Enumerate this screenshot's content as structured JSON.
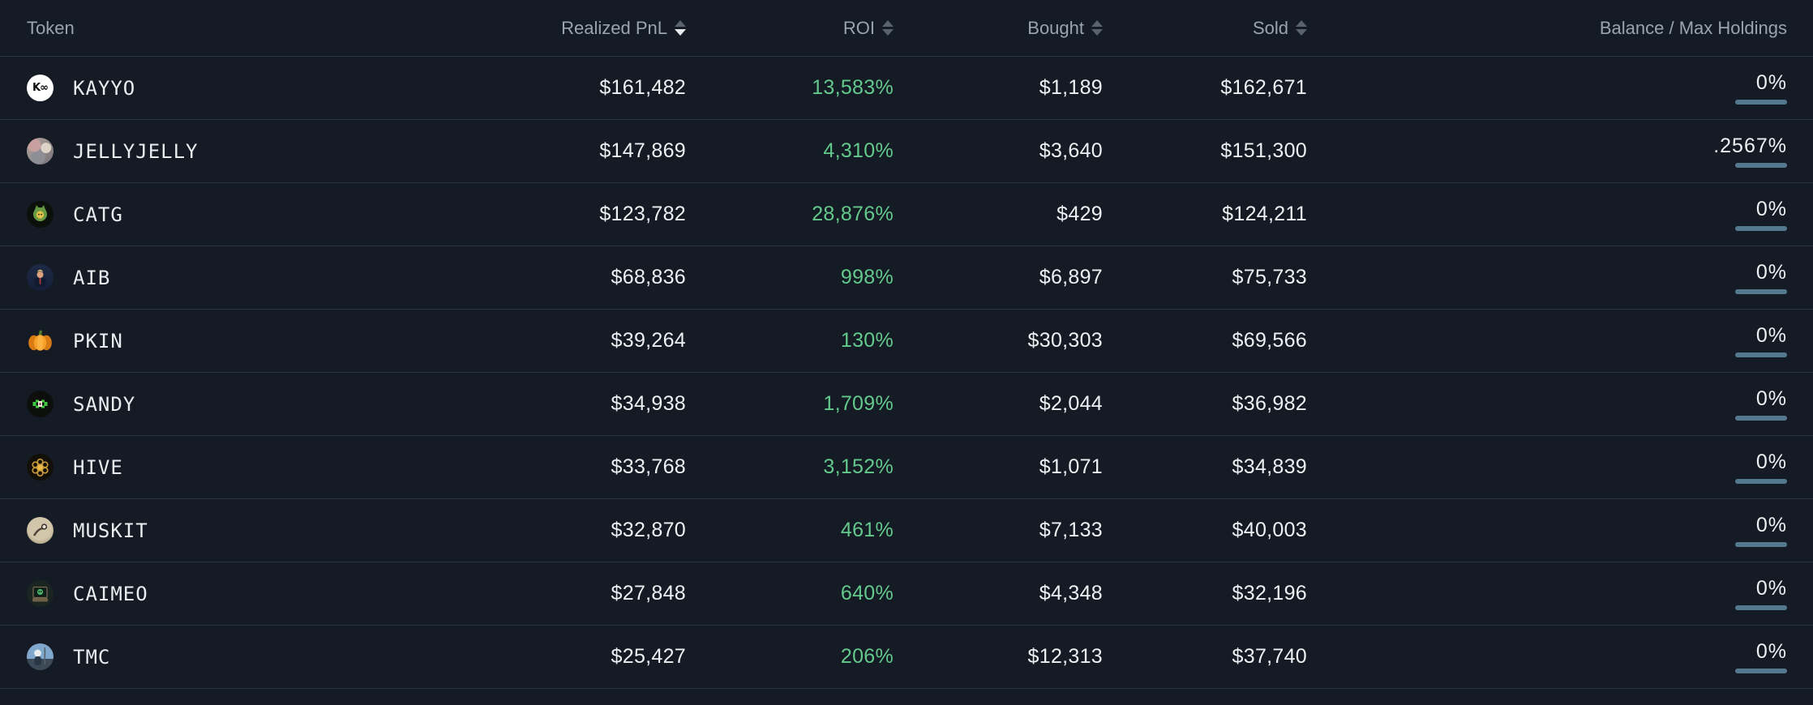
{
  "table": {
    "columns": [
      {
        "key": "token",
        "label": "Token",
        "sortable": false,
        "align": "left"
      },
      {
        "key": "realized_pnl",
        "label": "Realized PnL",
        "sortable": true,
        "sort": "desc"
      },
      {
        "key": "roi",
        "label": "ROI",
        "sortable": true,
        "sort": null
      },
      {
        "key": "bought",
        "label": "Bought",
        "sortable": true,
        "sort": null
      },
      {
        "key": "sold",
        "label": "Sold",
        "sortable": true,
        "sort": null
      },
      {
        "key": "balance",
        "label": "Balance / Max Holdings",
        "sortable": false
      }
    ],
    "rows": [
      {
        "token": "KAYYO",
        "icon": "kayyo",
        "icon_desc": "white circle with black K logo",
        "realized_pnl": "$161,482",
        "roi": "13,583%",
        "bought": "$1,189",
        "sold": "$162,671",
        "balance": "0%"
      },
      {
        "token": "JELLYJELLY",
        "icon": "jellyjelly",
        "icon_desc": "photo collage avatar",
        "realized_pnl": "$147,869",
        "roi": "4,310%",
        "bought": "$3,640",
        "sold": "$151,300",
        "balance": ".2567%"
      },
      {
        "token": "CATG",
        "icon": "catg",
        "icon_desc": "green cat character on black",
        "realized_pnl": "$123,782",
        "roi": "28,876%",
        "bought": "$429",
        "sold": "$124,211",
        "balance": "0%"
      },
      {
        "token": "AIB",
        "icon": "aib",
        "icon_desc": "figure on dark blue poster",
        "realized_pnl": "$68,836",
        "roi": "998%",
        "bought": "$6,897",
        "sold": "$75,733",
        "balance": "0%"
      },
      {
        "token": "PKIN",
        "icon": "pkin",
        "icon_desc": "orange pumpkin",
        "realized_pnl": "$39,264",
        "roi": "130%",
        "bought": "$30,303",
        "sold": "$69,566",
        "balance": "0%"
      },
      {
        "token": "SANDY",
        "icon": "sandy",
        "icon_desc": "green pixel creature on black",
        "realized_pnl": "$34,938",
        "roi": "1,709%",
        "bought": "$2,044",
        "sold": "$36,982",
        "balance": "0%"
      },
      {
        "token": "HIVE",
        "icon": "hive",
        "icon_desc": "gold honeycomb on black",
        "realized_pnl": "$33,768",
        "roi": "3,152%",
        "bought": "$1,071",
        "sold": "$34,839",
        "balance": "0%"
      },
      {
        "token": "MUSKIT",
        "icon": "muskit",
        "icon_desc": "cartoon rocket rider on tan",
        "realized_pnl": "$32,870",
        "roi": "461%",
        "bought": "$7,133",
        "sold": "$40,003",
        "balance": "0%"
      },
      {
        "token": "CAIMEO",
        "icon": "caimeo",
        "icon_desc": "green skull on retro computer screen",
        "realized_pnl": "$27,848",
        "roi": "640%",
        "bought": "$4,348",
        "sold": "$32,196",
        "balance": "0%"
      },
      {
        "token": "TMC",
        "icon": "tmc",
        "icon_desc": "helmeted person against blue sky",
        "realized_pnl": "$25,427",
        "roi": "206%",
        "bought": "$12,313",
        "sold": "$37,740",
        "balance": "0%"
      }
    ]
  },
  "colors": {
    "background": "#151b24",
    "separator": "#2d3540",
    "header_text": "#9aa4ae",
    "value_text": "#eef1f3",
    "roi_green": "#63c98c",
    "balance_bar": "#54788f",
    "sort_arrow_inactive": "#59626d",
    "sort_arrow_active": "#e8ebed"
  }
}
